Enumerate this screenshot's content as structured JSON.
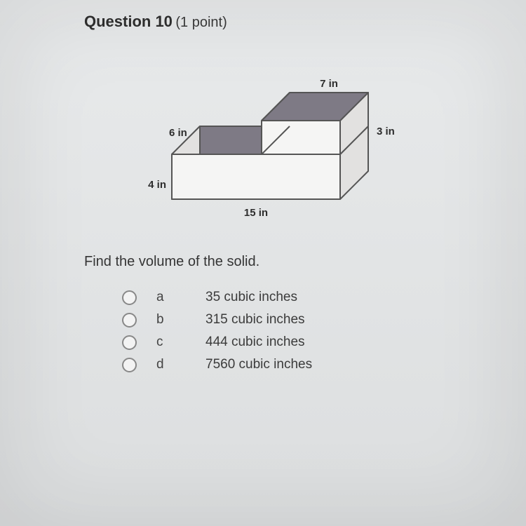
{
  "header": {
    "label": "Question 10",
    "points": "(1 point)"
  },
  "figure": {
    "labels": {
      "top": "7 in",
      "right": "3 in",
      "left_upper": "6 in",
      "left_lower": "4 in",
      "bottom": "15 in"
    },
    "colors": {
      "stroke": "#555555",
      "fill_front": "#f5f5f4",
      "fill_top_dark": "#7e7a85",
      "fill_side": "#e2e1e0",
      "label_color": "#2d2d2d"
    },
    "label_fontsize": 15
  },
  "prompt": "Find the volume of the solid.",
  "options": [
    {
      "letter": "a",
      "text": "35 cubic inches"
    },
    {
      "letter": "b",
      "text": "315 cubic inches"
    },
    {
      "letter": "c",
      "text": "444 cubic inches"
    },
    {
      "letter": "d",
      "text": "7560 cubic inches"
    }
  ]
}
